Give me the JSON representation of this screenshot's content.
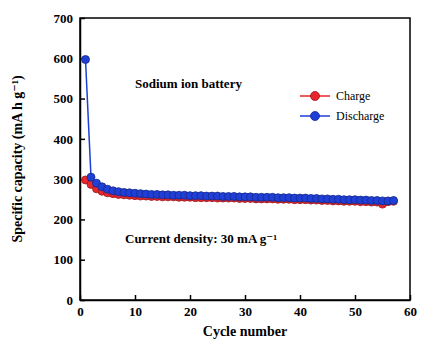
{
  "chart_data": {
    "type": "line",
    "x_label": "Cycle number",
    "y_label": "Specific capacity (mA h g⁻¹)",
    "annotations": [
      "Sodium ion battery",
      "Current density: 30 mA g⁻¹"
    ],
    "x": [
      1,
      2,
      3,
      4,
      5,
      6,
      7,
      8,
      9,
      10,
      11,
      12,
      13,
      14,
      15,
      16,
      17,
      18,
      19,
      20,
      21,
      22,
      23,
      24,
      25,
      26,
      27,
      28,
      29,
      30,
      31,
      32,
      33,
      34,
      35,
      36,
      37,
      38,
      39,
      40,
      41,
      42,
      43,
      44,
      45,
      46,
      47,
      48,
      49,
      50,
      51,
      52,
      53,
      54,
      55,
      56,
      57
    ],
    "series": [
      {
        "name": "Charge",
        "color": "#e8262b",
        "marker": "circle",
        "line_style": "solid",
        "values": [
          298,
          287,
          276,
          270,
          266,
          264,
          262,
          261,
          260,
          259,
          258,
          258,
          257,
          257,
          256,
          256,
          256,
          255,
          255,
          255,
          254,
          254,
          254,
          254,
          253,
          253,
          253,
          253,
          252,
          252,
          252,
          251,
          251,
          251,
          251,
          250,
          250,
          250,
          249,
          249,
          249,
          248,
          248,
          247,
          247,
          246,
          246,
          245,
          245,
          245,
          244,
          244,
          243,
          243,
          238,
          244,
          245
        ]
      },
      {
        "name": "Discharge",
        "color": "#1f3fd6",
        "marker": "circle",
        "line_style": "solid",
        "values": [
          597,
          305,
          290,
          281,
          275,
          271,
          269,
          267,
          266,
          265,
          264,
          263,
          262,
          262,
          261,
          261,
          260,
          260,
          260,
          259,
          259,
          259,
          258,
          258,
          258,
          257,
          257,
          257,
          256,
          256,
          256,
          255,
          255,
          255,
          255,
          254,
          254,
          254,
          253,
          253,
          253,
          252,
          252,
          251,
          251,
          250,
          250,
          249,
          249,
          249,
          248,
          248,
          247,
          247,
          246,
          246,
          247
        ]
      }
    ],
    "xlim": [
      0,
      60
    ],
    "xticks": [
      0,
      10,
      20,
      30,
      40,
      50,
      60
    ],
    "ylim": [
      0,
      700
    ],
    "yticks": [
      0,
      100,
      200,
      300,
      400,
      500,
      600,
      700
    ],
    "legend": "right",
    "grid": false
  }
}
